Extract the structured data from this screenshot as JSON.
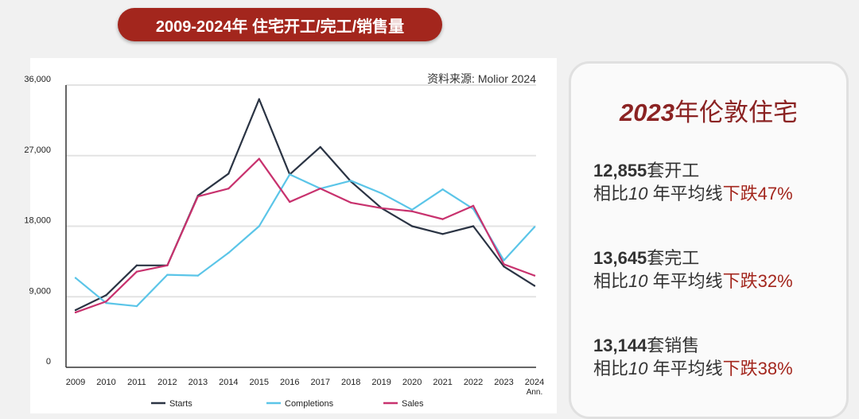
{
  "header": {
    "title": "2009-2024年 住宅开工/完工/销售量"
  },
  "chart_data": {
    "type": "line",
    "source": "资料来源: Molior 2024",
    "categories": [
      "2009",
      "2010",
      "2011",
      "2012",
      "2013",
      "2014",
      "2015",
      "2016",
      "2017",
      "2018",
      "2019",
      "2020",
      "2021",
      "2022",
      "2023",
      "2024"
    ],
    "category_sublabels": {
      "2024": "Ann."
    },
    "ylim": [
      0,
      36000
    ],
    "yticks": [
      "0",
      "9,000",
      "18,000",
      "27,000",
      "36,000"
    ],
    "grid": true,
    "legend_position": "bottom",
    "series": [
      {
        "name": "Starts",
        "color": "#2b3444",
        "values": [
          7300,
          9200,
          13000,
          13000,
          21900,
          24700,
          34200,
          24600,
          28100,
          23700,
          20300,
          18000,
          17000,
          18000,
          12855,
          10400
        ]
      },
      {
        "name": "Completions",
        "color": "#5bc5e8",
        "values": [
          11400,
          8200,
          7800,
          11800,
          11700,
          14600,
          18000,
          24600,
          22800,
          23800,
          22200,
          20100,
          22700,
          20200,
          13645,
          17900
        ]
      },
      {
        "name": "Sales",
        "color": "#c8326e",
        "values": [
          7000,
          8400,
          12200,
          13000,
          21800,
          22800,
          26600,
          21100,
          22800,
          21000,
          20300,
          19900,
          18900,
          20600,
          13144,
          11700
        ]
      }
    ]
  },
  "summary": {
    "title_year": "2023",
    "title_rest": "年伦敦住宅",
    "items": [
      {
        "number": "12,855",
        "label": "套开工",
        "prefix": "相比",
        "years": "10",
        "mid": " 年平均线",
        "change": "下跌47%"
      },
      {
        "number": "13,645",
        "label": "套完工",
        "prefix": "相比",
        "years": "10",
        "mid": " 年平均线",
        "change": "下跌32%"
      },
      {
        "number": "13,144",
        "label": "套销售",
        "prefix": "相比",
        "years": "10",
        "mid": " 年平均线",
        "change": "下跌38%"
      }
    ]
  }
}
